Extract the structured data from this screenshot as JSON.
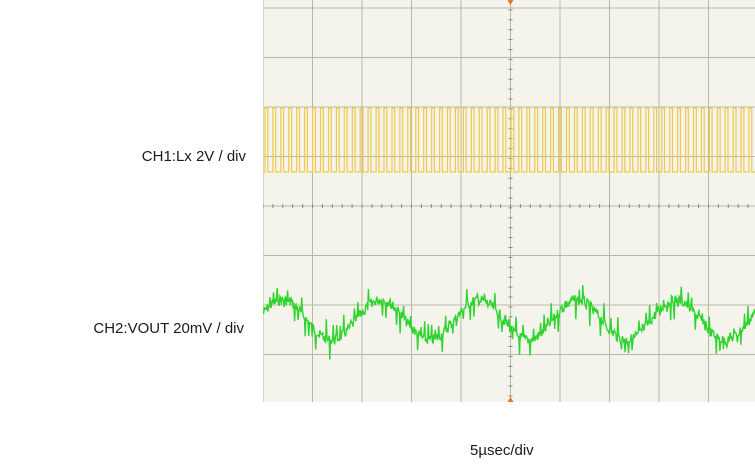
{
  "chart_data": {
    "type": "line",
    "title": "",
    "xlabel": "5µsec/div",
    "ylabel": "",
    "grid": true,
    "colors": {
      "ch1": "#f0c84a",
      "ch2": "#2fd42f",
      "grid": "#b8b8a6",
      "background": "#f4f4ec"
    },
    "series": [
      {
        "name": "CH1:Lx 2V / div",
        "waveform": "switching square wave",
        "pulses_visible": 62
      },
      {
        "name": "CH2:VOUT 20mV / div",
        "waveform": "output voltage ripple",
        "ripple_cycles_visible": 5
      }
    ]
  }
}
